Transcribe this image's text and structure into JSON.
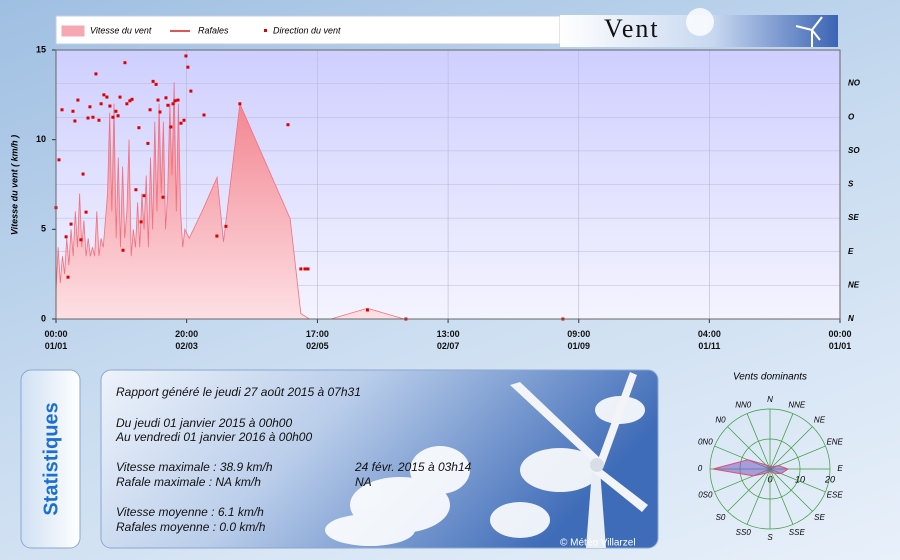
{
  "header": {
    "title": "Vent"
  },
  "chart_data": [
    {
      "type": "timeseries",
      "y_label": "Vitesse du vent  ( km/h )",
      "legend": "top",
      "grid": true,
      "xlim": [
        0,
        365
      ],
      "xticks": [
        {
          "value": 0,
          "label": "00:00\n01/01"
        },
        {
          "value": 60.83,
          "label": "20:00\n02/03"
        },
        {
          "value": 121.71,
          "label": "17:00\n02/05"
        },
        {
          "value": 182.54,
          "label": "13:00\n02/07"
        },
        {
          "value": 243.38,
          "label": "09:00\n01/09"
        },
        {
          "value": 304.17,
          "label": "04:00\n01/11"
        },
        {
          "value": 365,
          "label": "00:00\n01/01"
        }
      ],
      "ylim": [
        0,
        15
      ],
      "yticks": [
        0,
        5,
        10,
        15
      ],
      "y2lim": [
        0,
        360
      ],
      "y2ticks": [
        {
          "value": 0,
          "label": "N"
        },
        {
          "value": 45,
          "label": "NE"
        },
        {
          "value": 90,
          "label": "E"
        },
        {
          "value": 135,
          "label": "SE"
        },
        {
          "value": 180,
          "label": "S"
        },
        {
          "value": 225,
          "label": "SO"
        },
        {
          "value": 270,
          "label": "O"
        },
        {
          "value": 315,
          "label": "NO"
        }
      ],
      "series": [
        {
          "name": "Vitesse du vent",
          "type": "area",
          "color": "#f07080",
          "x": [
            0,
            1,
            2,
            3,
            4,
            5,
            6,
            7,
            8,
            9,
            10,
            11,
            12,
            13,
            14,
            15,
            16,
            17,
            18,
            19,
            20,
            21,
            22,
            23,
            24,
            25,
            26,
            27,
            28,
            29,
            30,
            31,
            32,
            33,
            34,
            35,
            36,
            37,
            38,
            39,
            40,
            41,
            42,
            43,
            44,
            45,
            46,
            47,
            48,
            49,
            50,
            51,
            52,
            53,
            54,
            55,
            56,
            57,
            58,
            59,
            60,
            62,
            68,
            75,
            78,
            85.6,
            109,
            114,
            118,
            128,
            145,
            162,
            365
          ],
          "values": [
            1.5,
            4,
            2,
            3.5,
            2.5,
            4.5,
            3,
            5,
            3.5,
            6,
            4,
            7,
            4,
            5.5,
            3.5,
            4.5,
            3.5,
            4,
            3.5,
            6,
            3.5,
            4.5,
            4,
            5.5,
            7,
            11.5,
            6,
            12,
            4.5,
            9,
            4,
            8.5,
            4.5,
            6,
            10,
            3.5,
            5,
            4,
            6.5,
            4,
            7,
            5,
            8,
            4,
            9,
            5,
            11,
            6,
            12,
            7,
            11,
            5,
            7,
            12,
            8,
            13.2,
            6,
            12,
            6,
            4,
            5,
            4.5,
            6,
            7.9,
            4.3,
            12,
            5.6,
            0.3,
            0,
            0,
            0.6,
            0,
            0
          ]
        },
        {
          "name": "Rafales",
          "type": "line",
          "color": "#d02020",
          "x": [],
          "values": []
        },
        {
          "name": "Direction du vent",
          "type": "scatter",
          "color": "#dd0000",
          "axis": "y2",
          "x": [
            0,
            1.4,
            2.8,
            4.7,
            5.6,
            7,
            7.9,
            8.8,
            10.2,
            11.6,
            12.6,
            14,
            14.9,
            15.8,
            17.2,
            18.6,
            20,
            21,
            22.3,
            23.7,
            25.1,
            26.5,
            27.9,
            28.9,
            29.8,
            31.2,
            32.1,
            33,
            34.4,
            35.4,
            37.2,
            38.6,
            39.6,
            41,
            42.8,
            43.8,
            45.2,
            46.6,
            47.5,
            48.4,
            49.8,
            51.2,
            52.1,
            53.5,
            54.5,
            55.4,
            56.8,
            58.2,
            59.6,
            60.5,
            61.4,
            62.8,
            68.9,
            74.9,
            79.1,
            85.6,
            108,
            114,
            115.9,
            117.3,
            145,
            162.9,
            236
          ],
          "values": [
            149,
            213,
            280,
            110,
            56,
            127,
            278,
            265,
            293,
            106,
            194,
            143,
            269,
            284,
            270,
            328,
            266,
            288,
            300,
            297,
            285,
            270,
            278,
            272,
            297,
            92,
            343,
            288,
            292,
            294,
            173,
            256,
            130,
            165,
            235,
            280,
            318,
            314,
            293,
            277,
            163,
            296,
            286,
            257,
            288,
            292,
            293,
            262,
            266,
            352,
            337,
            305,
            273,
            111,
            124,
            288,
            260,
            67,
            67,
            67,
            12,
            0,
            0
          ]
        }
      ]
    },
    {
      "type": "radar",
      "title": "Vents dominants",
      "color": "#7a5cc8",
      "categories": [
        "N",
        "NNE",
        "NE",
        "ENE",
        "E",
        "ESE",
        "SE",
        "SSE",
        "S",
        "SS0",
        "S0",
        "0S0",
        "0",
        "0N0",
        "N0",
        "NN0"
      ],
      "values": [
        1,
        1,
        1,
        3,
        6,
        4,
        2,
        1,
        1,
        1,
        2,
        6,
        19,
        8,
        2,
        1
      ],
      "rlim": [
        0,
        20
      ],
      "rticks": [
        0,
        10,
        20
      ]
    }
  ],
  "stats": {
    "tab": "Statistiques",
    "generated": "Rapport généré le jeudi 27 août 2015 à 07h31",
    "period_from": "Du jeudi 01 janvier 2015 à 00h00",
    "period_to": "Au vendredi 01 janvier 2016 à 00h00",
    "max_speed": "Vitesse maximale : 38.9 km/h",
    "max_speed_date": "24 févr. 2015 à 03h14",
    "max_gust": "Rafale maximale : NA km/h",
    "max_gust_date": "NA",
    "mean_speed": "Vitesse moyenne : 6.1 km/h",
    "mean_gust": "Rafales moyenne : 0.0 km/h"
  },
  "credit": "© Météo Villarzel"
}
